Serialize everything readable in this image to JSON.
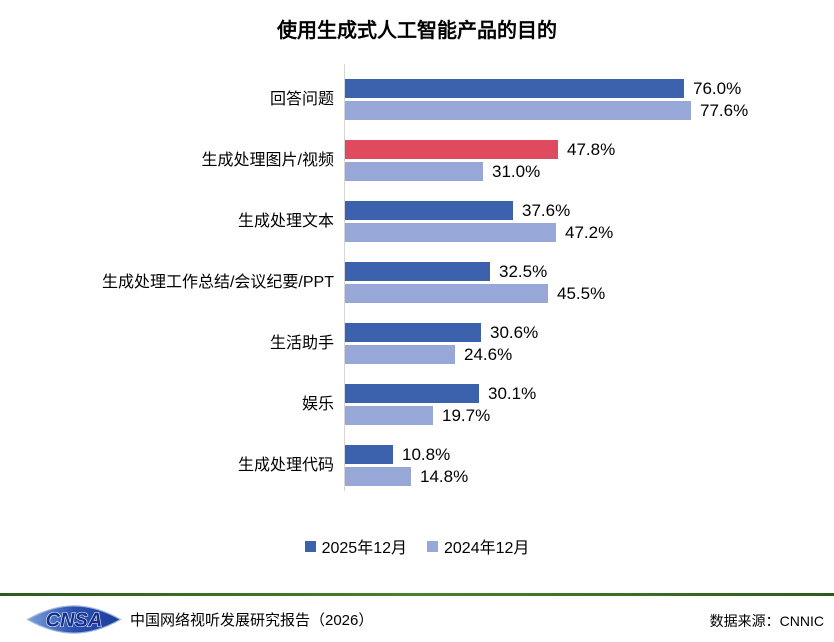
{
  "chart_data": {
    "type": "bar",
    "orientation": "horizontal",
    "title": "使用生成式人工智能产品的目的",
    "categories": [
      "回答问题",
      "生成处理图片/视频",
      "生成处理文本",
      "生成处理工作总结/会议纪要/PPT",
      "生活助手",
      "娱乐",
      "生成处理代码"
    ],
    "series": [
      {
        "name": "2025年12月",
        "color": "#3d62ad",
        "values": [
          76.0,
          47.8,
          37.6,
          32.5,
          30.6,
          30.1,
          10.8
        ]
      },
      {
        "name": "2024年12月",
        "color": "#97a7d8",
        "values": [
          77.6,
          31.0,
          47.2,
          45.5,
          24.6,
          19.7,
          14.8
        ]
      }
    ],
    "highlight": {
      "series": 0,
      "index": 1,
      "color": "#e04a5f"
    },
    "value_suffix": "%",
    "value_decimals": 1,
    "xlim": [
      0,
      80
    ],
    "grid": false,
    "legend_position": "bottom"
  },
  "footer": {
    "logo_text": "CNSA",
    "report": "中国网络视听发展研究报告（2026）",
    "source": "数据来源：CNNIC"
  },
  "colors": {
    "axis_line": "#d6d6d6",
    "footer_line": "#3a6622",
    "logo_blue": "#14308f"
  }
}
